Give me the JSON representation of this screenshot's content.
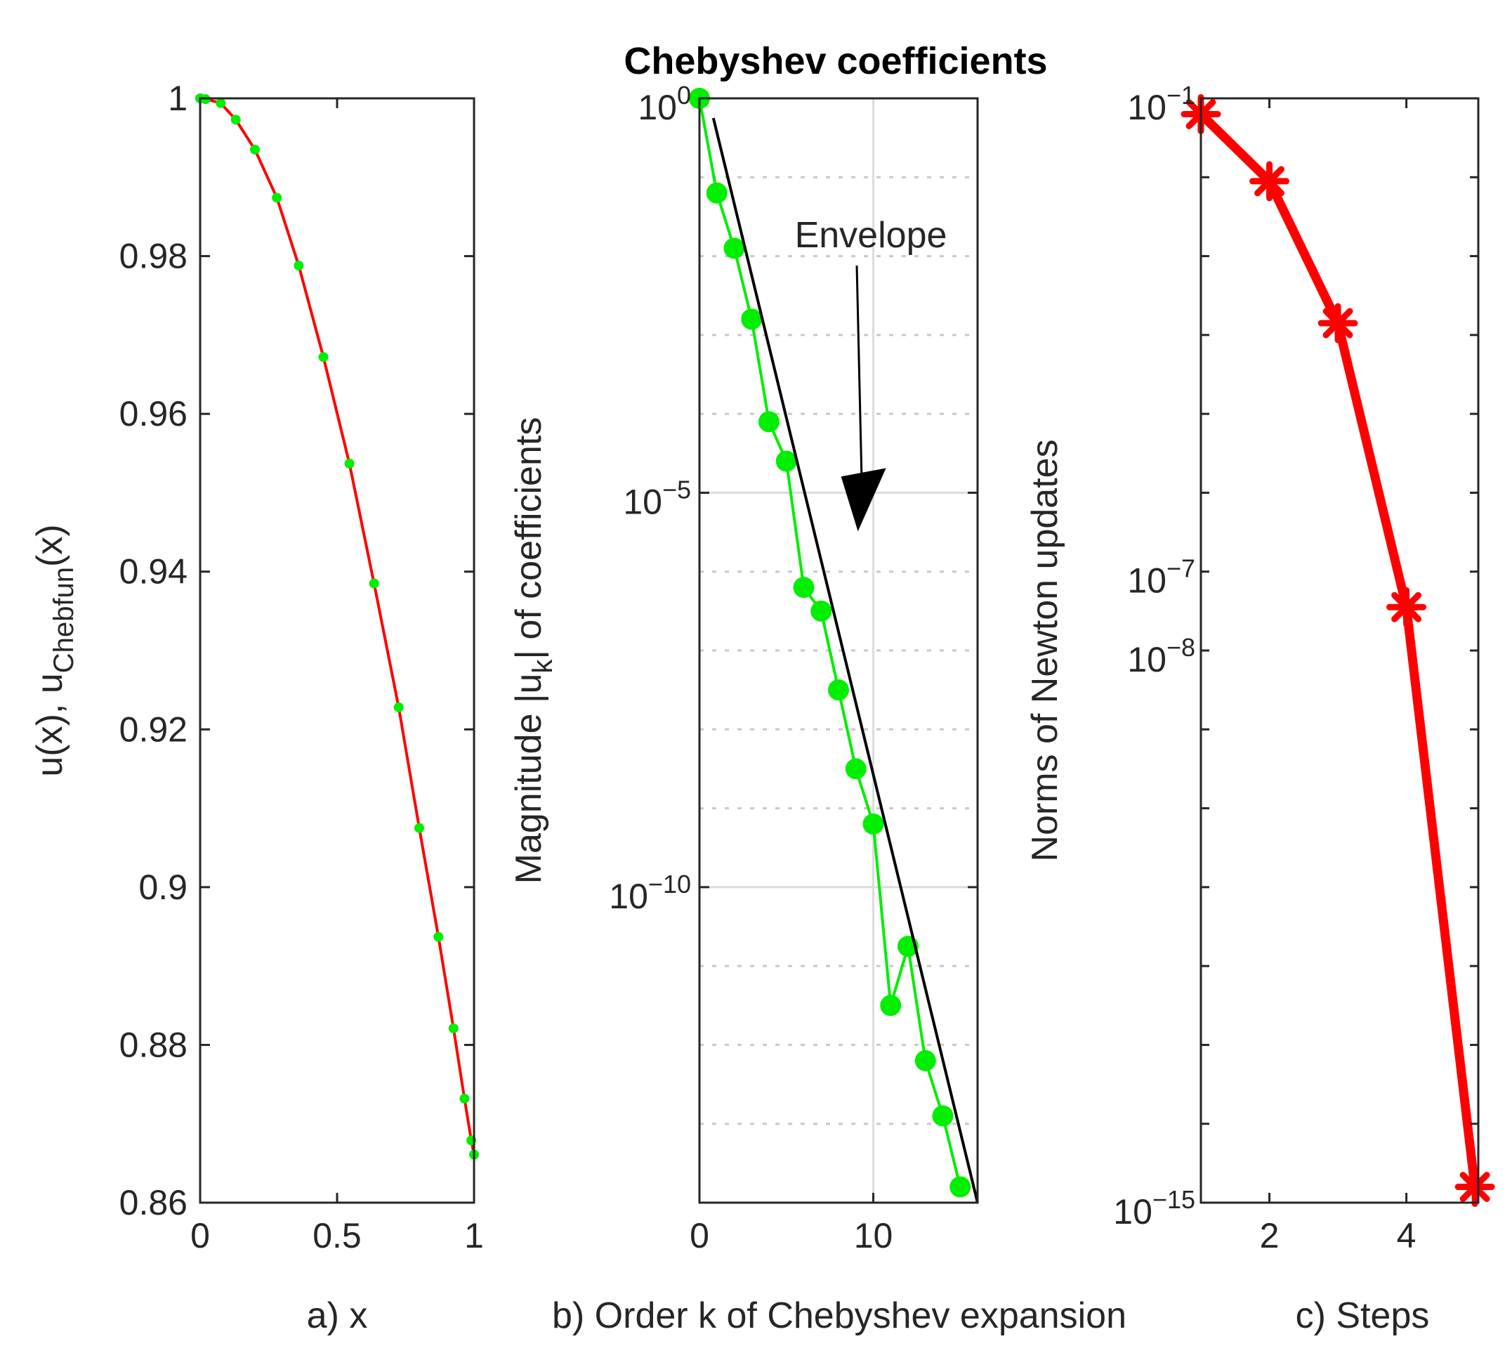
{
  "title": "Chebyshev coefficients",
  "chart_data": [
    {
      "id": "a",
      "type": "line",
      "xlabel": "a) x",
      "ylabel": "u(x), u",
      "ylabel_sub": "Chebfun",
      "ylabel_tail": "(x)",
      "xlim": [
        0,
        1
      ],
      "ylim": [
        0.86,
        1.0
      ],
      "xticks": [
        0,
        0.5,
        1
      ],
      "xtick_labels": [
        "0",
        "0.5",
        "1"
      ],
      "yticks": [
        0.86,
        0.88,
        0.9,
        0.92,
        0.94,
        0.96,
        0.98,
        1
      ],
      "ytick_labels": [
        "0.86",
        "0.88",
        "0.9",
        "0.92",
        "0.94",
        "0.96",
        "0.98",
        "1"
      ],
      "line_color": "#ff0000",
      "marker_color": "#00ee00",
      "series": [
        {
          "name": "u(x)",
          "x": [
            0,
            0.02,
            0.075,
            0.13,
            0.2,
            0.28,
            0.36,
            0.45,
            0.545,
            0.635,
            0.725,
            0.8,
            0.87,
            0.925,
            0.965,
            0.99,
            1.0
          ],
          "y": [
            1.0,
            0.9999,
            0.9994,
            0.9973,
            0.9935,
            0.9874,
            0.9788,
            0.9672,
            0.9537,
            0.9385,
            0.9228,
            0.9075,
            0.8937,
            0.8821,
            0.8732,
            0.8679,
            0.8661
          ]
        }
      ]
    },
    {
      "id": "b",
      "type": "line",
      "yscale": "log",
      "xlabel": "b) Order k of Chebyshev expansion",
      "ylabel": "Magnitude |u",
      "ylabel_sub": "k",
      "ylabel_tail": "| of coefficients",
      "xlim": [
        0,
        16
      ],
      "ylim_exp": [
        -14,
        0
      ],
      "xticks": [
        0,
        10
      ],
      "xtick_labels": [
        "0",
        "10"
      ],
      "yticks_exp": [
        0,
        -5,
        -10
      ],
      "ytick_base": "10",
      "ytick_exps": [
        "0",
        "−5",
        "−10"
      ],
      "grid": true,
      "line_color": "#00ee00",
      "marker_color": "#00ee00",
      "series": [
        {
          "name": "|u_k|",
          "x": [
            0,
            1,
            2,
            3,
            4,
            5,
            6,
            7,
            8,
            9,
            10,
            11,
            12,
            13,
            14,
            15
          ],
          "y_log10": [
            0.0,
            -1.2,
            -1.9,
            -2.8,
            -4.1,
            -4.6,
            -6.2,
            -6.5,
            -7.5,
            -8.5,
            -9.2,
            -11.5,
            -10.75,
            -12.2,
            -12.9,
            -13.8
          ]
        },
        {
          "name": "Envelope",
          "x": [
            0.8,
            16
          ],
          "y_log10": [
            -0.25,
            -14.0
          ],
          "color": "#000000"
        }
      ],
      "annotation": {
        "text": "Envelope",
        "points_to_x": 7.5,
        "points_to_y_log10": -5.4
      }
    },
    {
      "id": "c",
      "type": "line",
      "yscale": "log",
      "xlabel": "c) Steps",
      "ylabel": "Norms of Newton updates",
      "xlim": [
        1,
        5.05
      ],
      "ylim_exp": [
        -15,
        -1
      ],
      "xticks": [
        2,
        4
      ],
      "xtick_labels": [
        "2",
        "4"
      ],
      "yticks_exp": [
        -1,
        -7,
        -8,
        -15
      ],
      "ytick_base": "10",
      "ytick_exps": [
        "−1",
        "−7",
        "−8",
        "−15"
      ],
      "line_color": "#ff0000",
      "marker_color": "#ff0000",
      "series": [
        {
          "name": "Newton update norms",
          "x": [
            1,
            2,
            3,
            4,
            5
          ],
          "y_log10": [
            -1.2,
            -2.05,
            -3.85,
            -7.45,
            -14.8
          ]
        }
      ]
    }
  ]
}
